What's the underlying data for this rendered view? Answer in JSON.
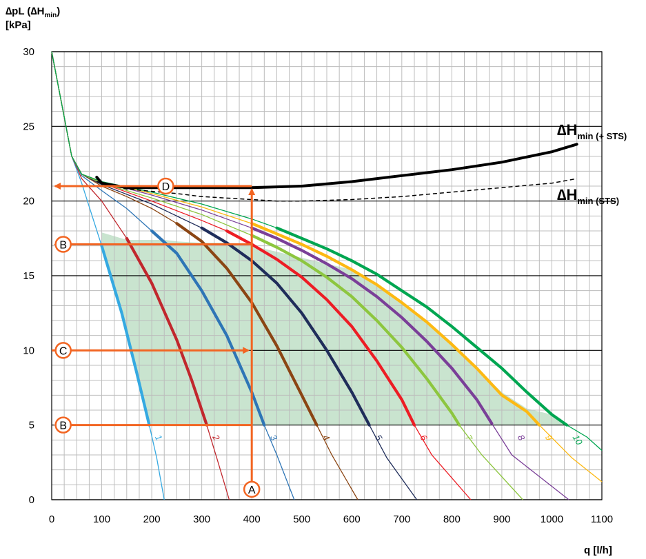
{
  "chart_data": {
    "type": "line",
    "ylabel_line1": "∆pL (∆H",
    "ylabel_line1_sub": "min",
    "ylabel_line1_end": ")",
    "ylabel_line2": "[kPa]",
    "xlabel": "q [l/h]",
    "xlim": [
      0,
      1100
    ],
    "ylim": [
      0,
      30
    ],
    "x_ticks": [
      0,
      100,
      200,
      300,
      400,
      500,
      600,
      700,
      800,
      900,
      1000,
      1100
    ],
    "y_ticks": [
      0,
      5,
      10,
      15,
      20,
      25,
      30
    ],
    "grid": true,
    "colors": {
      "grid": "#bcbcbc",
      "major_grid": "#000000",
      "shade": "#c9e4cf",
      "arrow": "#f26522"
    },
    "series": [
      {
        "name": "1",
        "color": "#35a9e1",
        "values": [
          [
            0,
            30
          ],
          [
            20,
            26.5
          ],
          [
            40,
            23
          ],
          [
            60,
            21.2
          ],
          [
            100,
            17
          ],
          [
            140,
            12.5
          ],
          [
            170,
            8.5
          ],
          [
            195,
            5
          ],
          [
            210,
            2.8
          ],
          [
            225,
            0
          ]
        ]
      },
      {
        "name": "2",
        "color": "#c1272d",
        "values": [
          [
            0,
            30
          ],
          [
            20,
            26.5
          ],
          [
            40,
            23
          ],
          [
            60,
            21.5
          ],
          [
            100,
            20
          ],
          [
            150,
            17.5
          ],
          [
            200,
            14.5
          ],
          [
            250,
            10.7
          ],
          [
            280,
            8
          ],
          [
            310,
            5
          ],
          [
            330,
            2.8
          ],
          [
            355,
            0
          ]
        ]
      },
      {
        "name": "3",
        "color": "#2e75b6",
        "values": [
          [
            0,
            30
          ],
          [
            20,
            26.5
          ],
          [
            40,
            23
          ],
          [
            60,
            21.7
          ],
          [
            100,
            20.7
          ],
          [
            150,
            19.5
          ],
          [
            200,
            18
          ],
          [
            250,
            16.5
          ],
          [
            300,
            14
          ],
          [
            350,
            11
          ],
          [
            400,
            7.2
          ],
          [
            425,
            5
          ],
          [
            450,
            3
          ],
          [
            485,
            0
          ]
        ]
      },
      {
        "name": "4",
        "color": "#8b4513",
        "values": [
          [
            0,
            30
          ],
          [
            20,
            26.5
          ],
          [
            40,
            23
          ],
          [
            60,
            21.8
          ],
          [
            100,
            21
          ],
          [
            150,
            20.3
          ],
          [
            200,
            19.5
          ],
          [
            250,
            18.5
          ],
          [
            300,
            17.3
          ],
          [
            350,
            15.5
          ],
          [
            400,
            13.2
          ],
          [
            450,
            10.3
          ],
          [
            500,
            7
          ],
          [
            530,
            5
          ],
          [
            560,
            3
          ],
          [
            612,
            0
          ]
        ]
      },
      {
        "name": "5",
        "color": "#1f2d5a",
        "values": [
          [
            0,
            30
          ],
          [
            20,
            26.5
          ],
          [
            40,
            23
          ],
          [
            60,
            21.8
          ],
          [
            100,
            21.1
          ],
          [
            200,
            19.8
          ],
          [
            300,
            18.2
          ],
          [
            350,
            17.2
          ],
          [
            400,
            16
          ],
          [
            450,
            14.5
          ],
          [
            500,
            12.5
          ],
          [
            550,
            10
          ],
          [
            600,
            7.2
          ],
          [
            635,
            5
          ],
          [
            670,
            2.8
          ],
          [
            730,
            0
          ]
        ]
      },
      {
        "name": "6",
        "color": "#ed1c24",
        "values": [
          [
            0,
            30
          ],
          [
            20,
            26.5
          ],
          [
            40,
            23
          ],
          [
            60,
            21.8
          ],
          [
            100,
            21.2
          ],
          [
            200,
            20
          ],
          [
            300,
            18.7
          ],
          [
            350,
            18
          ],
          [
            400,
            17.1
          ],
          [
            450,
            16.1
          ],
          [
            500,
            14.9
          ],
          [
            550,
            13.4
          ],
          [
            600,
            11.6
          ],
          [
            650,
            9.3
          ],
          [
            700,
            6.7
          ],
          [
            725,
            5
          ],
          [
            760,
            3
          ],
          [
            838,
            0
          ]
        ]
      },
      {
        "name": "7",
        "color": "#8dc63f",
        "values": [
          [
            0,
            30
          ],
          [
            20,
            26.5
          ],
          [
            40,
            23
          ],
          [
            60,
            21.8
          ],
          [
            100,
            21.2
          ],
          [
            200,
            20.2
          ],
          [
            300,
            19.1
          ],
          [
            400,
            17.7
          ],
          [
            450,
            16.9
          ],
          [
            500,
            16
          ],
          [
            550,
            14.9
          ],
          [
            600,
            13.6
          ],
          [
            650,
            12
          ],
          [
            700,
            10.2
          ],
          [
            750,
            8.1
          ],
          [
            800,
            5.8
          ],
          [
            815,
            5
          ],
          [
            860,
            3
          ],
          [
            942,
            0
          ]
        ]
      },
      {
        "name": "8",
        "color": "#7a3f98",
        "values": [
          [
            0,
            30
          ],
          [
            20,
            26.5
          ],
          [
            40,
            23
          ],
          [
            60,
            21.8
          ],
          [
            100,
            21.3
          ],
          [
            200,
            20.4
          ],
          [
            300,
            19.4
          ],
          [
            400,
            18.2
          ],
          [
            450,
            17.5
          ],
          [
            500,
            16.7
          ],
          [
            550,
            15.8
          ],
          [
            600,
            14.8
          ],
          [
            650,
            13.6
          ],
          [
            700,
            12.2
          ],
          [
            750,
            10.6
          ],
          [
            800,
            8.8
          ],
          [
            850,
            6.7
          ],
          [
            880,
            5.1
          ],
          [
            920,
            3
          ],
          [
            1034,
            0
          ]
        ]
      },
      {
        "name": "9",
        "color": "#fdb913",
        "values": [
          [
            0,
            30
          ],
          [
            20,
            26.5
          ],
          [
            40,
            23
          ],
          [
            60,
            21.8
          ],
          [
            100,
            21.3
          ],
          [
            200,
            20.5
          ],
          [
            300,
            19.6
          ],
          [
            400,
            18.5
          ],
          [
            450,
            17.8
          ],
          [
            500,
            17.1
          ],
          [
            550,
            16.3
          ],
          [
            600,
            15.4
          ],
          [
            650,
            14.4
          ],
          [
            700,
            13.2
          ],
          [
            750,
            11.9
          ],
          [
            800,
            10.4
          ],
          [
            850,
            8.8
          ],
          [
            900,
            7
          ],
          [
            950,
            5.9
          ],
          [
            975,
            5
          ],
          [
            1040,
            2.8
          ],
          [
            1100,
            1.2
          ]
        ]
      },
      {
        "name": "10",
        "color": "#00a651",
        "values": [
          [
            0,
            30
          ],
          [
            20,
            26.5
          ],
          [
            40,
            23
          ],
          [
            60,
            21.8
          ],
          [
            100,
            21.3
          ],
          [
            200,
            20.6
          ],
          [
            300,
            19.8
          ],
          [
            400,
            18.8
          ],
          [
            450,
            18.2
          ],
          [
            500,
            17.5
          ],
          [
            550,
            16.8
          ],
          [
            600,
            16
          ],
          [
            650,
            15.1
          ],
          [
            700,
            14
          ],
          [
            750,
            12.9
          ],
          [
            800,
            11.6
          ],
          [
            850,
            10.2
          ],
          [
            900,
            8.8
          ],
          [
            950,
            7.2
          ],
          [
            1000,
            5.7
          ],
          [
            1030,
            5
          ],
          [
            1070,
            4.2
          ],
          [
            1100,
            3.3
          ]
        ]
      }
    ],
    "dh_plus_sts": {
      "label": "∆H",
      "sub": "min (+ STS)",
      "color": "#000000",
      "values": [
        [
          90,
          21.6
        ],
        [
          100,
          21.2
        ],
        [
          150,
          20.9
        ],
        [
          200,
          20.9
        ],
        [
          300,
          20.9
        ],
        [
          400,
          20.9
        ],
        [
          500,
          21
        ],
        [
          600,
          21.3
        ],
        [
          700,
          21.7
        ],
        [
          800,
          22.1
        ],
        [
          900,
          22.6
        ],
        [
          1000,
          23.3
        ],
        [
          1050,
          23.8
        ]
      ]
    },
    "dh_sts": {
      "label": "∆H",
      "sub": "min (",
      "sub_struck": "STS",
      "sub_end": ")",
      "color": "#000000",
      "values": [
        [
          90,
          21.3
        ],
        [
          150,
          20.8
        ],
        [
          250,
          20.5
        ],
        [
          300,
          20.3
        ],
        [
          400,
          20.1
        ],
        [
          450,
          20.0
        ],
        [
          500,
          20
        ],
        [
          600,
          20.1
        ],
        [
          700,
          20.3
        ],
        [
          800,
          20.6
        ],
        [
          900,
          20.9
        ],
        [
          1000,
          21.2
        ],
        [
          1050,
          21.5
        ]
      ]
    },
    "shaded_region": {
      "color": "#c9e4cf",
      "values": [
        [
          100,
          17.9
        ],
        [
          150,
          17.4
        ],
        [
          225,
          17.4
        ],
        [
          250,
          17.3
        ],
        [
          300,
          17.2
        ],
        [
          350,
          17.2
        ],
        [
          400,
          17
        ],
        [
          450,
          16.6
        ],
        [
          500,
          16.2
        ],
        [
          550,
          15.8
        ],
        [
          600,
          15.4
        ],
        [
          650,
          14.4
        ],
        [
          700,
          13.2
        ],
        [
          750,
          11.9
        ],
        [
          800,
          10.4
        ],
        [
          850,
          8.8
        ],
        [
          900,
          7.2
        ],
        [
          950,
          6.1
        ],
        [
          1000,
          5.7
        ],
        [
          1030,
          5
        ],
        [
          195,
          5
        ],
        [
          170,
          8.5
        ],
        [
          140,
          12.5
        ],
        [
          100,
          17
        ]
      ]
    },
    "markers": {
      "A": {
        "label": "A",
        "x": 400,
        "y": 0.7
      },
      "B1": {
        "label": "B",
        "y": 17.1
      },
      "B2": {
        "label": "B",
        "y": 5
      },
      "C": {
        "label": "C",
        "y": 10
      },
      "D": {
        "label": "D",
        "y": 21
      }
    }
  }
}
